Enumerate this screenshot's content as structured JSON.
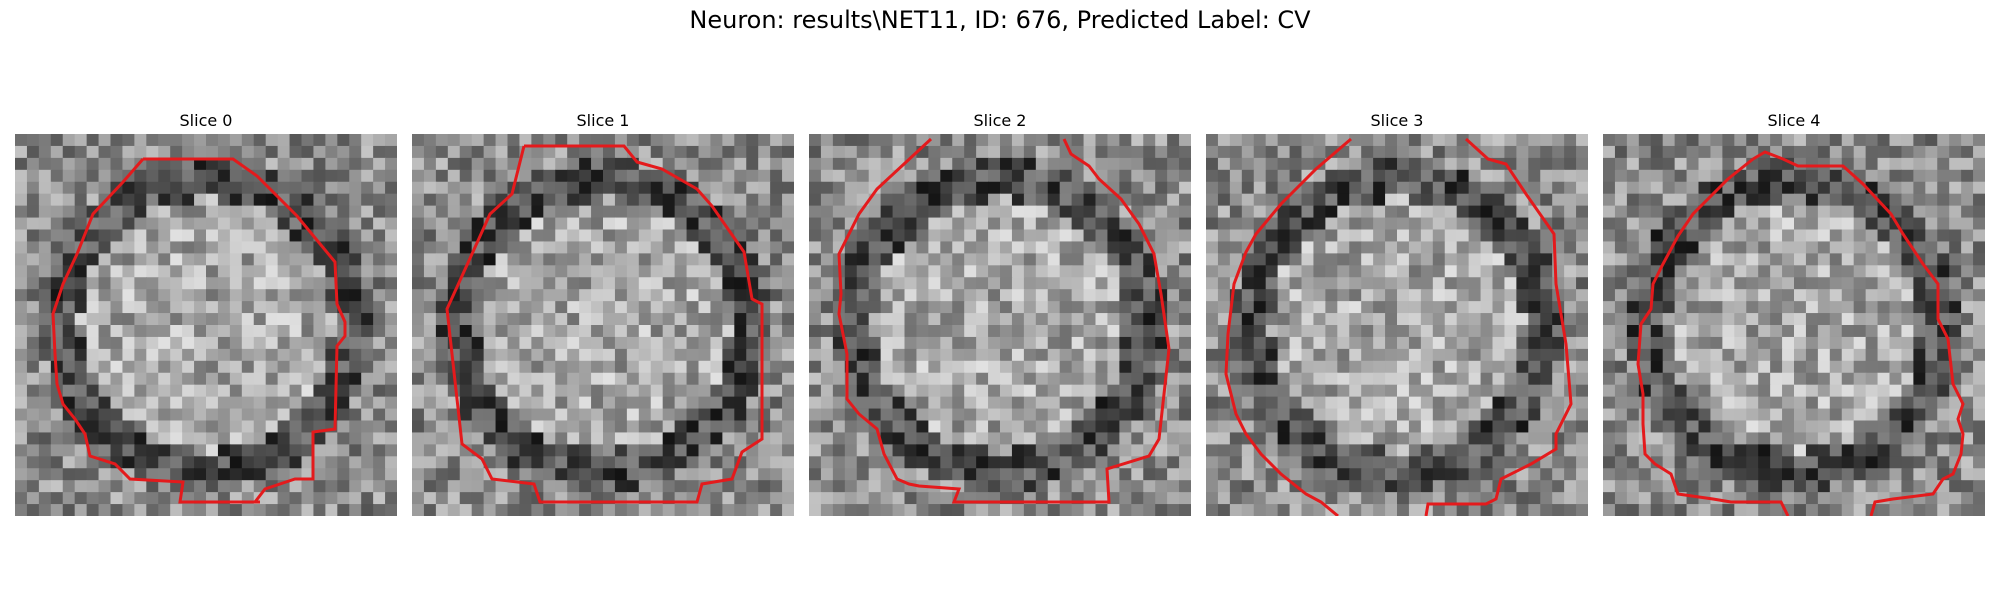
{
  "figure": {
    "title": "Neuron: results\\NET11, ID: 676, Predicted Label: CV"
  },
  "panels": [
    {
      "title": "Slice 0"
    },
    {
      "title": "Slice 1"
    },
    {
      "title": "Slice 2"
    },
    {
      "title": "Slice 3"
    },
    {
      "title": "Slice 4"
    }
  ],
  "overlay": {
    "contour_color": "#e41a1c"
  }
}
